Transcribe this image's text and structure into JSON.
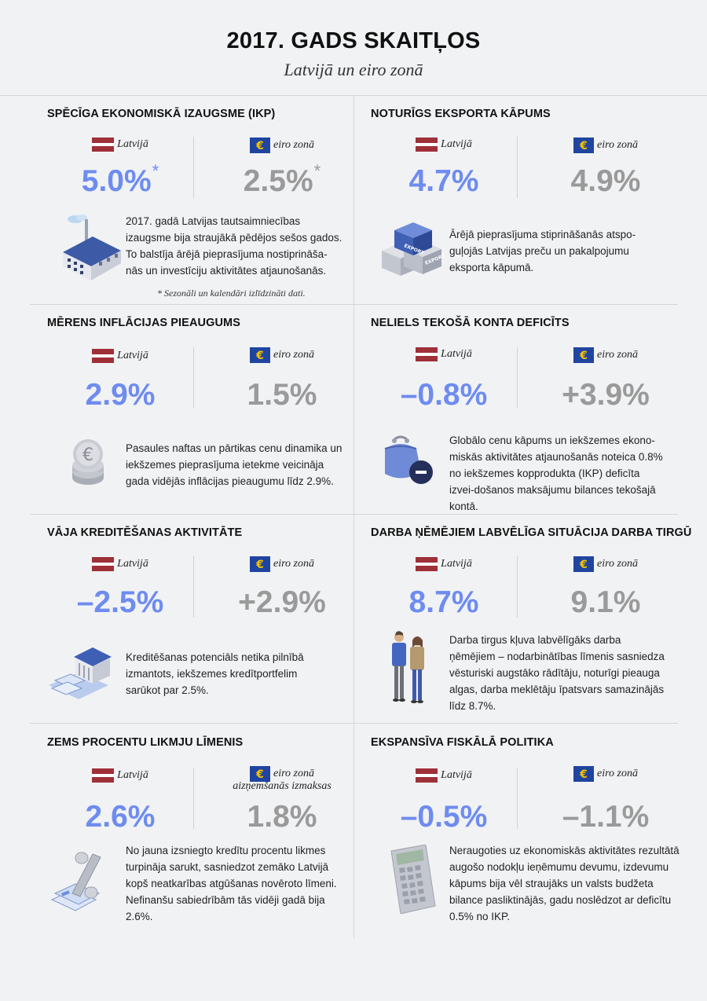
{
  "header": {
    "title": "2017. GADS SKAITĻOS",
    "subtitle": "Latvijā un eiro zonā"
  },
  "colors": {
    "latvia_value": "#6e8cf0",
    "euro_value": "#9a9a9a",
    "latvia_flag": "#9e3039",
    "eu_flag": "#1f45a0",
    "eu_star": "#f5c400"
  },
  "sections": [
    {
      "title": "SPĒCĪGA EKONOMISKĀ IZAUGSME (IKP)",
      "lv_label": "Latvijā",
      "lv_value": "5.0%",
      "lv_star": "*",
      "eu_label": "eiro zonā",
      "eu_value": "2.5%",
      "eu_star": "*",
      "icon": "factory-icon",
      "text": "2017. gadā Latvijas tautsaimniecības izaugsme bija straujākā pēdējos sešos gados. To balstīja ārējā pieprasījuma nostiprināša-nās un investīciju aktivitātes atjaunošanās.",
      "note": "* Sezonāli un kalendāri izlīdzināti dati."
    },
    {
      "title": "NOTURĪGS EKSPORTA KĀPUMS",
      "lv_label": "Latvijā",
      "lv_value": "4.7%",
      "eu_label": "eiro zonā",
      "eu_value": "4.9%",
      "icon": "export-boxes-icon",
      "box_label": "EXPORT",
      "text": "Ārējā pieprasījuma stiprināšanās atspo-guļojās Latvijas preču un pakalpojumu eksporta kāpumā."
    },
    {
      "title": "MĒRENS INFLĀCIJAS PIEAUGUMS",
      "lv_label": "Latvijā",
      "lv_value": "2.9%",
      "eu_label": "eiro zonā",
      "eu_value": "1.5%",
      "icon": "euro-coins-icon",
      "text": "Pasaules naftas un pārtikas cenu dinamika un iekšzemes pieprasījuma ietekme veicināja gada vidējās inflācijas pieaugumu līdz 2.9%."
    },
    {
      "title": "NELIELS TEKOŠĀ KONTA DEFICĪTS",
      "lv_label": "Latvijā",
      "lv_value": "–0.8%",
      "eu_label": "eiro zonā",
      "eu_value": "+3.9%",
      "icon": "wallet-minus-icon",
      "text": "Globālo cenu kāpums un iekšzemes ekono-miskās aktivitātes atjaunošanās noteica 0.8% no iekšzemes kopprodukta (IKP) deficīta izvei-došanos maksājumu bilances tekošajā kontā."
    },
    {
      "title": "VĀJA KREDITĒŠANAS AKTIVITĀTE",
      "lv_label": "Latvijā",
      "lv_value": "–2.5%",
      "eu_label": "eiro zonā",
      "eu_value": "+2.9%",
      "icon": "bank-icon",
      "text": "Kreditēšanas potenciāls netika pilnībā izmantots, iekšzemes kredītportfelim sarūkot par 2.5%."
    },
    {
      "title": "DARBA ŅĒMĒJIEM LABVĒLĪGA SITUĀCIJA DARBA TIRGŪ",
      "lv_label": "Latvijā",
      "lv_value": "8.7%",
      "eu_label": "eiro zonā",
      "eu_value": "9.1%",
      "icon": "workers-icon",
      "text": "Darba tirgus kļuva labvēlīgāks darba ņēmējiem – nodarbinātības līmenis sasniedza vēsturiski augstāko rādītāju, noturīgi pieauga algas, darba meklētāju īpatsvars samazinājās līdz 8.7%."
    },
    {
      "title": "ZEMS PROCENTU LIKMJU LĪMENIS",
      "lv_label": "Latvijā",
      "lv_value": "2.6%",
      "eu_label": "eiro zonā",
      "eu_label2": "aizņemšanās izmaksas",
      "eu_value": "1.8%",
      "icon": "percent-icon",
      "text": "No jauna izsniegto kredītu procentu likmes turpināja sarukt, sasniedzot zemāko Latvijā kopš neatkarības atgūšanas novēroto līmeni. Nefinanšu sabiedrībām tās vidēji gadā bija 2.6%."
    },
    {
      "title": "EKSPANSĪVA FISKĀLĀ POLITIKA",
      "lv_label": "Latvijā",
      "lv_value": "–0.5%",
      "eu_label": "eiro zonā",
      "eu_value": "–1.1%",
      "icon": "calculator-icon",
      "text": "Neraugoties uz ekonomiskās aktivitātes rezultātā augošo nodokļu ieņēmumu devumu, izdevumu kāpums bija vēl straujāks un valsts budžeta bilance pasliktinājās, gadu noslēdzot ar deficītu 0.5% no IKP."
    }
  ]
}
